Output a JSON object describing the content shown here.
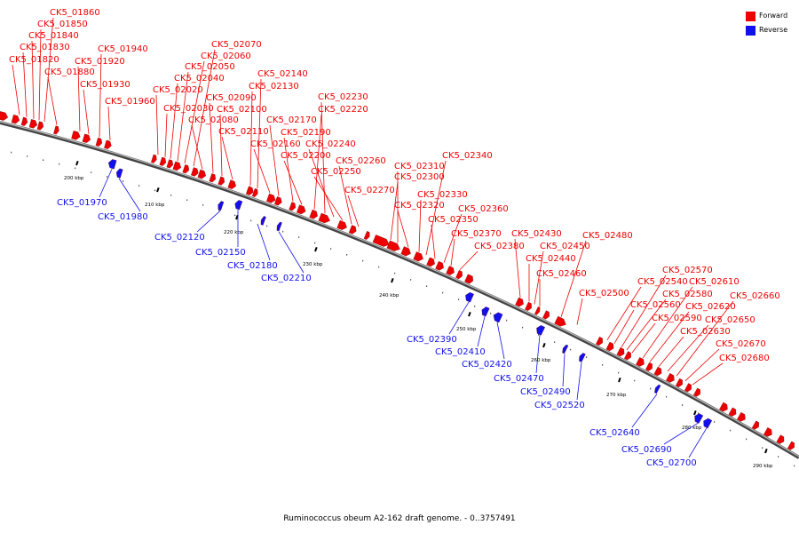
{
  "caption": "Ruminococcus obeum A2-162 draft genome. - 0..3757491",
  "legend": {
    "forward": {
      "label": "Forward",
      "color": "#ee0000"
    },
    "reverse": {
      "label": "Reverse",
      "color": "#1010ee"
    }
  },
  "axis": {
    "ticks": [
      "200 kbp",
      "210 kbp",
      "220 kbp",
      "230 kbp",
      "240 kbp",
      "250 kbp",
      "260 kbp",
      "270 kbp",
      "280 kbp",
      "290 kbp"
    ]
  },
  "forward_genes": [
    "CK5_01820",
    "CK5_01830",
    "CK5_01840",
    "CK5_01850",
    "CK5_01860",
    "CK5_01880",
    "CK5_01920",
    "CK5_01930",
    "CK5_01940",
    "CK5_01960",
    "CK5_02020",
    "CK5_02030",
    "CK5_02040",
    "CK5_02050",
    "CK5_02060",
    "CK5_02070",
    "CK5_02080",
    "CK5_02090",
    "CK5_02100",
    "CK5_02110",
    "CK5_02130",
    "CK5_02140",
    "CK5_02160",
    "CK5_02170",
    "CK5_02190",
    "CK5_02200",
    "CK5_02220",
    "CK5_02230",
    "CK5_02240",
    "CK5_02250",
    "CK5_02260",
    "CK5_02270",
    "CK5_02300",
    "CK5_02310",
    "CK5_02320",
    "CK5_02330",
    "CK5_02340",
    "CK5_02350",
    "CK5_02360",
    "CK5_02370",
    "CK5_02380",
    "CK5_02430",
    "CK5_02440",
    "CK5_02450",
    "CK5_02460",
    "CK5_02480",
    "CK5_02500",
    "CK5_02540",
    "CK5_02560",
    "CK5_02570",
    "CK5_02580",
    "CK5_02590",
    "CK5_02610",
    "CK5_02620",
    "CK5_02630",
    "CK5_02650",
    "CK5_02660",
    "CK5_02670",
    "CK5_02680"
  ],
  "reverse_genes": [
    "CK5_01970",
    "CK5_01980",
    "CK5_02120",
    "CK5_02150",
    "CK5_02180",
    "CK5_02210",
    "CK5_02390",
    "CK5_02410",
    "CK5_02420",
    "CK5_02470",
    "CK5_02490",
    "CK5_02520",
    "CK5_02640",
    "CK5_02690",
    "CK5_02700"
  ]
}
